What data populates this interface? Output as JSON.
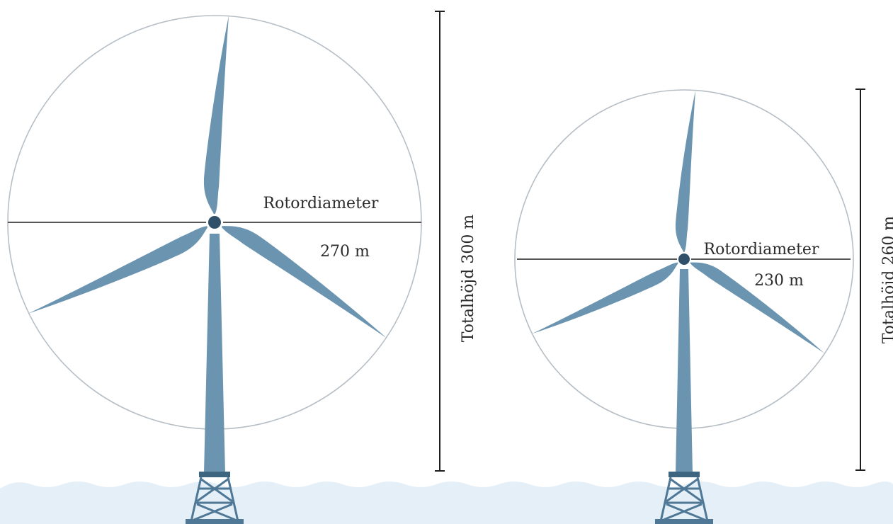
{
  "colors": {
    "turbine": "#6b94b0",
    "hub": "#30506a",
    "rotor_circle": "#b6bec6",
    "measure_line": "#1e1e1e",
    "water": "#e4eff7",
    "wave_edge": "#d2e4f0",
    "jacket": "#4f7896",
    "jacket_cap": "#3e6580"
  },
  "turbines": [
    {
      "id": "large",
      "rotor_label": "Rotordiameter",
      "rotor_value": "270 m",
      "height_label": "Totalhöjd 300 m"
    },
    {
      "id": "small",
      "rotor_label": "Rotordiameter",
      "rotor_value": "230 m",
      "height_label": "Totalhöjd 260 m"
    }
  ]
}
